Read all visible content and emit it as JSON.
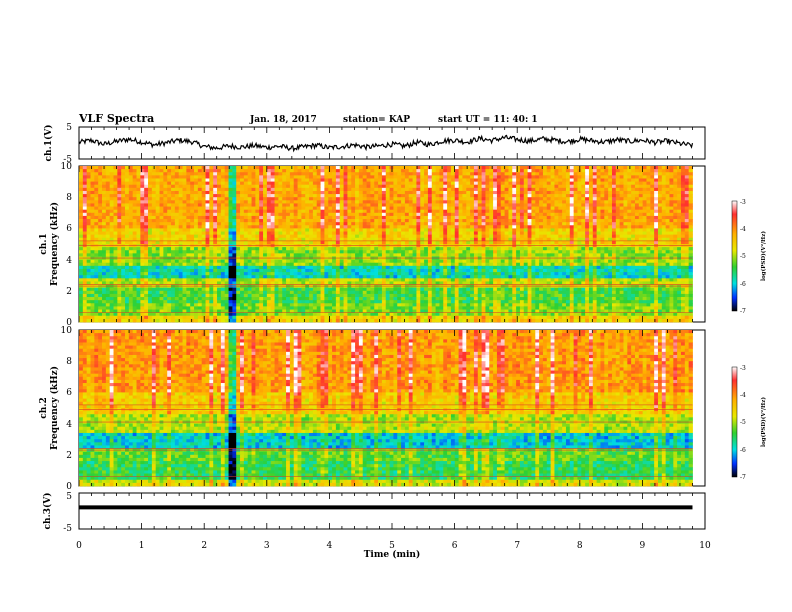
{
  "header": {
    "title": "VLF Spectra",
    "date": "Jan. 18, 2017",
    "station": "station= KAP",
    "start_ut": "start  UT =   11: 40: 1"
  },
  "chart_data": [
    {
      "type": "line",
      "panel": "ch1-waveform",
      "ylabel": "ch.1(V)",
      "ylim": [
        -5,
        5
      ],
      "yticks": [
        "5",
        "-5"
      ],
      "xlim": [
        0,
        10
      ],
      "series": [
        {
          "values_note": "",
          "values": [
            0.2,
            0.8,
            -0.4,
            0.5,
            1.2,
            0.3,
            -0.6,
            0.1,
            0.9,
            0.4,
            -1.1,
            -1.6,
            -0.9,
            -1.3,
            -0.8,
            -1.4,
            -1.0,
            -1.7,
            -1.2,
            -0.7,
            -1.5,
            -1.1,
            -0.6,
            -1.3,
            -0.9,
            -0.4,
            -1.0,
            0.2,
            -0.5,
            0.6,
            0.9,
            0.3,
            1.4,
            0.8,
            1.7,
            1.1,
            0.6,
            1.3,
            0.9,
            0.4,
            1.2,
            0.7,
            0.3,
            1.0,
            0.5,
            0.9,
            0.2,
            0.6,
            -0.2,
            -0.8
          ]
        }
      ]
    },
    {
      "type": "heatmap",
      "panel": "ch1-spectrogram",
      "ylabel": "ch.1\nFrequency (kHz)",
      "ylabel_lines": [
        "ch.1",
        "Frequency (kHz)"
      ],
      "ylim": [
        0,
        10
      ],
      "yticks": [
        "0",
        "2",
        "4",
        "6",
        "8",
        "10"
      ],
      "xlim": [
        0,
        9.8
      ],
      "colorbar": {
        "label": "log(PSD)(V²/Hz)",
        "range": [
          -7,
          -3
        ],
        "ticks": [
          "-3",
          "-4",
          "-5",
          "-6",
          "-7"
        ]
      },
      "bands_log_psd": [
        {
          "freq_khz": [
            0,
            0.4
          ],
          "level": -4.6
        },
        {
          "freq_khz": [
            0.4,
            1.2
          ],
          "level": -5.2
        },
        {
          "freq_khz": [
            1.2,
            2.3
          ],
          "level": -5.4
        },
        {
          "freq_khz": [
            2.3,
            2.8
          ],
          "level": -5.0
        },
        {
          "freq_khz": [
            2.8,
            3.6
          ],
          "level": -5.9
        },
        {
          "freq_khz": [
            3.6,
            4.9
          ],
          "level": -5.1
        },
        {
          "freq_khz": [
            4.9,
            6.0
          ],
          "level": -4.6
        },
        {
          "freq_khz": [
            6.0,
            10
          ],
          "level": -4.2
        }
      ]
    },
    {
      "type": "heatmap",
      "panel": "ch2-spectrogram",
      "ylabel": "ch.2\nFrequency (kHz)",
      "ylabel_lines": [
        "ch.2",
        "Frequency (kHz)"
      ],
      "ylim": [
        0,
        10
      ],
      "yticks": [
        "0",
        "2",
        "4",
        "6",
        "8",
        "10"
      ],
      "xlim": [
        0,
        9.8
      ],
      "colorbar": {
        "label": "log(PSD)(V²/Hz)",
        "range": [
          -7,
          -3
        ],
        "ticks": [
          "-3",
          "-4",
          "-5",
          "-6",
          "-7"
        ]
      },
      "bands_log_psd": [
        {
          "freq_khz": [
            0,
            0.5
          ],
          "level": -4.8
        },
        {
          "freq_khz": [
            0.5,
            1.6
          ],
          "level": -5.5
        },
        {
          "freq_khz": [
            1.6,
            2.4
          ],
          "level": -5.3
        },
        {
          "freq_khz": [
            2.4,
            3.4
          ],
          "level": -6.0
        },
        {
          "freq_khz": [
            3.4,
            4.6
          ],
          "level": -5.0
        },
        {
          "freq_khz": [
            4.6,
            6.0
          ],
          "level": -4.5
        },
        {
          "freq_khz": [
            6.0,
            10
          ],
          "level": -4.1
        }
      ]
    },
    {
      "type": "line",
      "panel": "ch3-waveform",
      "ylabel": "ch.3(V)",
      "ylim": [
        -5,
        5
      ],
      "yticks": [
        "5",
        "-5"
      ],
      "xlim": [
        0,
        10
      ],
      "series": [
        {
          "values": [
            1.0,
            1.0
          ]
        }
      ]
    }
  ],
  "xaxis": {
    "label": "Time (min)",
    "ticks": [
      "0",
      "1",
      "2",
      "3",
      "4",
      "5",
      "6",
      "7",
      "8",
      "9",
      "10"
    ]
  }
}
